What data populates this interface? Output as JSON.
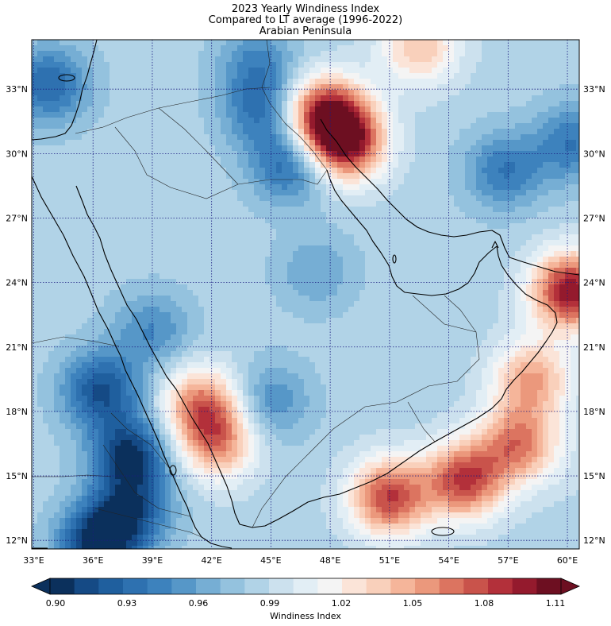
{
  "chart_data": {
    "type": "heatmap",
    "title_lines": [
      "2023 Yearly Windiness Index",
      "Compared to LT average (1996-2022)",
      "Arabian Peninsula"
    ],
    "x_ticks": [
      "33°E",
      "36°E",
      "39°E",
      "42°E",
      "45°E",
      "48°E",
      "51°E",
      "54°E",
      "57°E",
      "60°E"
    ],
    "y_ticks": [
      "33°N",
      "30°N",
      "27°N",
      "24°N",
      "21°N",
      "18°N",
      "15°N",
      "12°N"
    ],
    "x_tick_values": [
      33,
      36,
      39,
      42,
      45,
      48,
      51,
      54,
      57,
      60
    ],
    "y_tick_values": [
      33,
      30,
      27,
      24,
      21,
      18,
      15,
      12
    ],
    "lon_range": [
      32.9,
      60.6
    ],
    "lat_range": [
      11.6,
      35.3
    ],
    "colorbar": {
      "label": "Windiness Index",
      "min": 0.9,
      "max": 1.11,
      "step": 0.01,
      "tick_labels": [
        "0.90",
        "0.93",
        "0.96",
        "0.99",
        "1.02",
        "1.05",
        "1.08",
        "1.11"
      ],
      "tick_values": [
        0.9,
        0.93,
        0.96,
        0.99,
        1.02,
        1.05,
        1.08,
        1.11
      ],
      "colors": [
        "#0b305c",
        "#154a85",
        "#1f5f9e",
        "#2e71b0",
        "#3d82bd",
        "#5697c8",
        "#76aed4",
        "#94c2de",
        "#b1d3e7",
        "#cce1ee",
        "#e2eef5",
        "#f4f4f4",
        "#fbe4d8",
        "#f9d0bb",
        "#f5b59a",
        "#eb987c",
        "#dc7460",
        "#c9534b",
        "#b3303a",
        "#941a2d",
        "#6d0f21"
      ],
      "extend": "both"
    },
    "anomaly_centers": [
      {
        "lon": 48.8,
        "lat": 30.5,
        "value": 1.09
      },
      {
        "lon": 47.7,
        "lat": 31.8,
        "value": 1.09
      },
      {
        "lon": 60.2,
        "lat": 23.6,
        "value": 1.1
      },
      {
        "lon": 51.0,
        "lat": 14.0,
        "value": 1.08
      },
      {
        "lon": 54.8,
        "lat": 14.8,
        "value": 1.08
      },
      {
        "lon": 57.5,
        "lat": 16.5,
        "value": 1.06
      },
      {
        "lon": 58.2,
        "lat": 19.5,
        "value": 1.05
      },
      {
        "lon": 41.5,
        "lat": 18.3,
        "value": 1.06
      },
      {
        "lon": 42.3,
        "lat": 16.5,
        "value": 1.05
      },
      {
        "lon": 52.5,
        "lat": 35.0,
        "value": 1.04
      },
      {
        "lon": 36.3,
        "lat": 11.9,
        "value": 0.9
      },
      {
        "lon": 37.9,
        "lat": 16.0,
        "value": 0.91
      },
      {
        "lon": 36.4,
        "lat": 19.0,
        "value": 0.92
      },
      {
        "lon": 38.0,
        "lat": 13.4,
        "value": 0.93
      },
      {
        "lon": 46.0,
        "lat": 29.5,
        "value": 0.93
      },
      {
        "lon": 44.5,
        "lat": 32.0,
        "value": 0.94
      },
      {
        "lon": 44.3,
        "lat": 34.3,
        "value": 0.95
      },
      {
        "lon": 33.8,
        "lat": 33.2,
        "value": 0.93
      },
      {
        "lon": 56.8,
        "lat": 29.2,
        "value": 0.94
      },
      {
        "lon": 60.3,
        "lat": 30.5,
        "value": 0.94
      },
      {
        "lon": 39.0,
        "lat": 21.8,
        "value": 0.95
      },
      {
        "lon": 45.0,
        "lat": 18.5,
        "value": 0.95
      },
      {
        "lon": 47.3,
        "lat": 24.5,
        "value": 0.96
      },
      {
        "lon": 60.0,
        "lat": 15.5,
        "value": 0.99
      }
    ],
    "base_value": 0.985
  }
}
